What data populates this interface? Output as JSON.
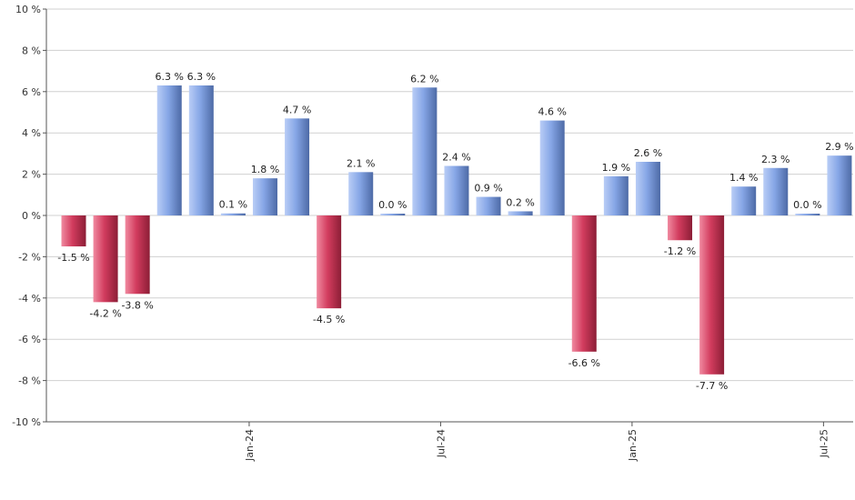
{
  "chart_data": {
    "type": "bar",
    "title": "",
    "xlabel": "",
    "ylabel": "",
    "ylim": [
      -10,
      10
    ],
    "yticks": [
      -10,
      -8,
      -6,
      -4,
      -2,
      0,
      2,
      4,
      6,
      8,
      10
    ],
    "ytick_labels": [
      "-10 %",
      "-8 %",
      "-6 %",
      "-4 %",
      "-2 %",
      "0 %",
      "2 %",
      "4 %",
      "6 %",
      "8 %",
      "10 %"
    ],
    "grid": true,
    "x_tick_labels": [
      {
        "index": 6,
        "label": "Jan-24"
      },
      {
        "index": 12,
        "label": "Jul-24"
      },
      {
        "index": 18,
        "label": "Jan-25"
      },
      {
        "index": 24,
        "label": "Jul-25"
      }
    ],
    "values": [
      -1.5,
      -4.2,
      -3.8,
      6.3,
      6.3,
      0.1,
      1.8,
      4.7,
      -4.5,
      2.1,
      0.0,
      6.2,
      2.4,
      0.9,
      0.2,
      4.6,
      -6.6,
      1.9,
      2.6,
      -1.2,
      -7.7,
      1.4,
      2.3,
      0.0,
      2.9
    ],
    "labels": [
      "-1.5 %",
      "-4.2 %",
      "-3.8 %",
      "6.3 %",
      "6.3 %",
      "0.1 %",
      "1.8 %",
      "4.7 %",
      "-4.5 %",
      "2.1 %",
      "0.0 %",
      "6.2 %",
      "2.4 %",
      "0.9 %",
      "0.2 %",
      "4.6 %",
      "-6.6 %",
      "1.9 %",
      "2.6 %",
      "-1.2 %",
      "-7.7 %",
      "1.4 %",
      "2.3 %",
      "0.0 %",
      "2.9 %"
    ],
    "colors": {
      "positive": "#7f9fe0",
      "negative": "#d13f5f",
      "grid": "#d0d0d0",
      "axis": "#555555"
    }
  }
}
